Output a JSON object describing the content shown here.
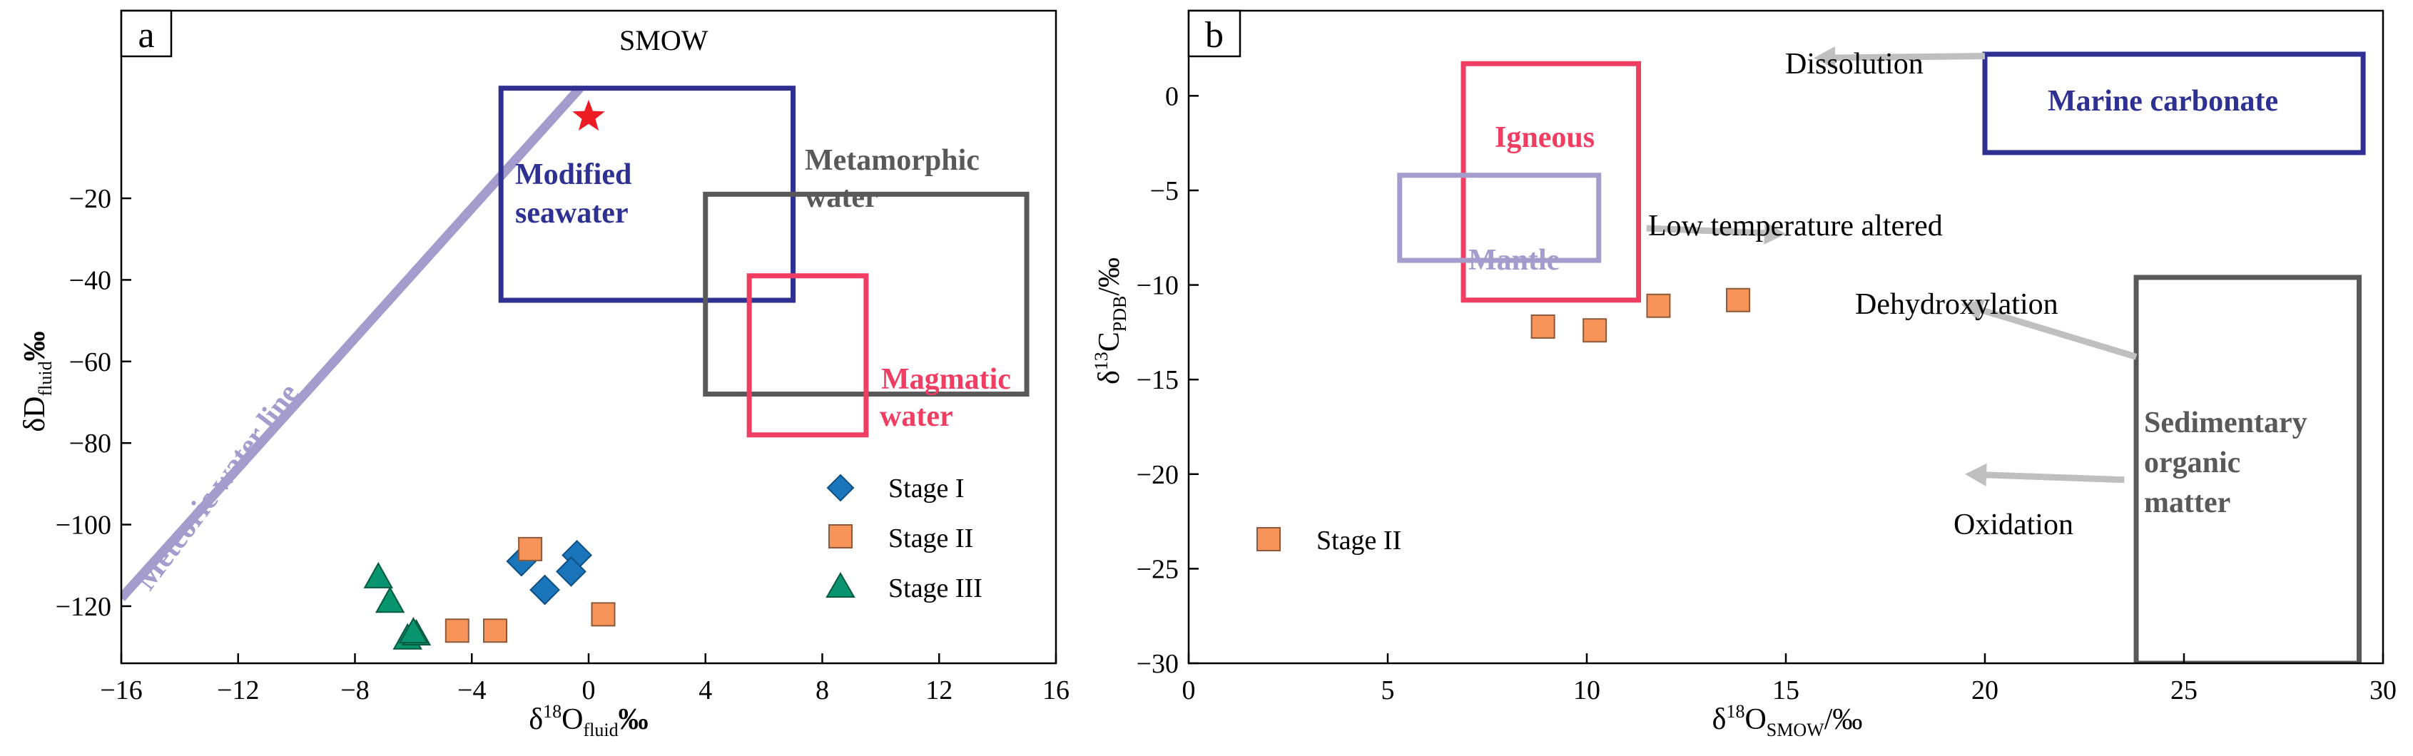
{
  "colors": {
    "frame": "#000000",
    "meteoric": "#a39ccc",
    "seawater": "#2e3192",
    "metamorphic": "#595959",
    "magmatic": "#ef3e62",
    "mantle": "#a39ccc",
    "arrow": "#bfbfbf",
    "stage1": "#1b75bb",
    "stage2": "#f7945a",
    "stage3": "#08946e",
    "smow": "#ed1c24"
  },
  "chart_data": [
    {
      "panel": "a",
      "type": "scatter",
      "xlabel": {
        "main": "δ",
        "sup": "18",
        "mid": "O",
        "sub": "fluid",
        "unit": "‰"
      },
      "ylabel": {
        "main": "δD",
        "sub": "fluid",
        "unit": "‰"
      },
      "xlim": [
        -16,
        16
      ],
      "ylim": [
        -134,
        26
      ],
      "xticks": [
        -16,
        -12,
        -8,
        -4,
        0,
        4,
        8,
        12,
        16
      ],
      "xtick_labels": [
        "−16",
        "−12",
        "−8",
        "−4",
        "0",
        "4",
        "8",
        "12",
        "16"
      ],
      "yticks": [
        -120,
        -100,
        -80,
        -60,
        -40,
        -20
      ],
      "ytick_labels": [
        "−120",
        "−100",
        "−80",
        "−60",
        "−40",
        "−20"
      ],
      "series": [
        {
          "name": "Stage I",
          "marker": "diamond",
          "points": [
            [
              -2.3,
              -109
            ],
            [
              -1.5,
              -116
            ],
            [
              -0.4,
              -107.5
            ],
            [
              -0.6,
              -111.5
            ]
          ]
        },
        {
          "name": "Stage II",
          "marker": "square",
          "points": [
            [
              -2.0,
              -106
            ],
            [
              -4.5,
              -126
            ],
            [
              -3.2,
              -126
            ],
            [
              0.5,
              -122
            ]
          ]
        },
        {
          "name": "Stage III",
          "marker": "triangle",
          "points": [
            [
              -7.2,
              -113
            ],
            [
              -6.8,
              -119
            ],
            [
              -6.2,
              -128
            ],
            [
              -5.9,
              -127
            ],
            [
              -6.0,
              -126.5
            ]
          ]
        }
      ],
      "smow": {
        "label": "SMOW",
        "x": 0,
        "y": 0
      },
      "meteoric_line": {
        "label": "Meteoric water line",
        "x": [
          -16,
          -0.3
        ],
        "y": [
          -118,
          7
        ]
      },
      "fields": [
        {
          "id": "modified-seawater",
          "label": [
            "Modified",
            "seawater"
          ],
          "x": [
            -3,
            7
          ],
          "y": [
            -45,
            7
          ],
          "color_key": "seawater"
        },
        {
          "id": "metamorphic-water",
          "label": [
            "Metamorphic",
            "water"
          ],
          "x": [
            4,
            15
          ],
          "y": [
            -68,
            -19
          ],
          "color_key": "metamorphic"
        },
        {
          "id": "magmatic-water",
          "label": [
            "Magmatic",
            "water"
          ],
          "x": [
            5.5,
            9.5
          ],
          "y": [
            -78,
            -39
          ],
          "color_key": "magmatic"
        }
      ],
      "legend": {
        "position": "bottom-right",
        "entries": [
          "Stage I",
          "Stage II",
          "Stage III"
        ]
      }
    },
    {
      "panel": "b",
      "type": "scatter",
      "xlabel": {
        "main": "δ",
        "sup": "18",
        "mid": "O",
        "sub": "SMOW",
        "unit": "/‰"
      },
      "ylabel": {
        "main": "δ",
        "sup": "13",
        "mid": "C",
        "sub": "PDB",
        "unit": "/‰"
      },
      "xlim": [
        0,
        30
      ],
      "ylim": [
        -30,
        4.5
      ],
      "xticks": [
        0,
        5,
        10,
        15,
        20,
        25,
        30
      ],
      "xtick_labels": [
        "0",
        "5",
        "10",
        "15",
        "20",
        "25",
        "30"
      ],
      "yticks": [
        -30,
        -25,
        -20,
        -15,
        -10,
        -5,
        0
      ],
      "ytick_labels": [
        "−30",
        "−25",
        "−20",
        "−15",
        "−10",
        "−5",
        "0"
      ],
      "series": [
        {
          "name": "Stage II",
          "marker": "square",
          "points": [
            [
              8.9,
              -12.2
            ],
            [
              10.2,
              -12.4
            ],
            [
              11.8,
              -11.1
            ],
            [
              13.8,
              -10.8
            ]
          ]
        }
      ],
      "fields": [
        {
          "id": "marine-carbonate",
          "label": [
            "Marine carbonate"
          ],
          "x": [
            20,
            29.5
          ],
          "y": [
            -3,
            2.2
          ],
          "color_key": "seawater"
        },
        {
          "id": "igneous",
          "label": [
            "Igneous"
          ],
          "x": [
            6.9,
            11.3
          ],
          "y": [
            -10.8,
            1.7
          ],
          "color_key": "magmatic"
        },
        {
          "id": "mantle",
          "label": [
            "Mantle"
          ],
          "x": [
            5.3,
            10.3
          ],
          "y": [
            -8.7,
            -4.2
          ],
          "color_key": "mantle"
        },
        {
          "id": "sedimentary-organic-matter",
          "label": [
            "Sedimentary",
            "organic",
            "matter"
          ],
          "x": [
            23.8,
            29.4
          ],
          "y": [
            -30,
            -9.6
          ],
          "color_key": "metamorphic"
        }
      ],
      "annotations": [
        {
          "id": "dissolution",
          "text": "Dissolution"
        },
        {
          "id": "low-temperature-altered",
          "text": "Low temperature altered"
        },
        {
          "id": "dehydroxylation",
          "text": "Dehydroxylation"
        },
        {
          "id": "oxidation",
          "text": "Oxidation"
        }
      ],
      "arrows": [
        {
          "id": "dissolution-arrow",
          "from": [
            20,
            2.1
          ],
          "to": [
            15.7,
            2.0
          ]
        },
        {
          "id": "low-temp-arrow",
          "from": [
            11.5,
            -7.0
          ],
          "to": [
            15,
            -7.3
          ]
        },
        {
          "id": "dehydroxylation-arrow",
          "from": [
            23.8,
            -13.8
          ],
          "to": [
            19.4,
            -11.0
          ]
        },
        {
          "id": "oxidation-arrow",
          "from": [
            23.5,
            -20.3
          ],
          "to": [
            19.5,
            -20.0
          ]
        }
      ],
      "legend": {
        "position": "bottom-left",
        "entries": [
          "Stage II"
        ]
      }
    }
  ]
}
